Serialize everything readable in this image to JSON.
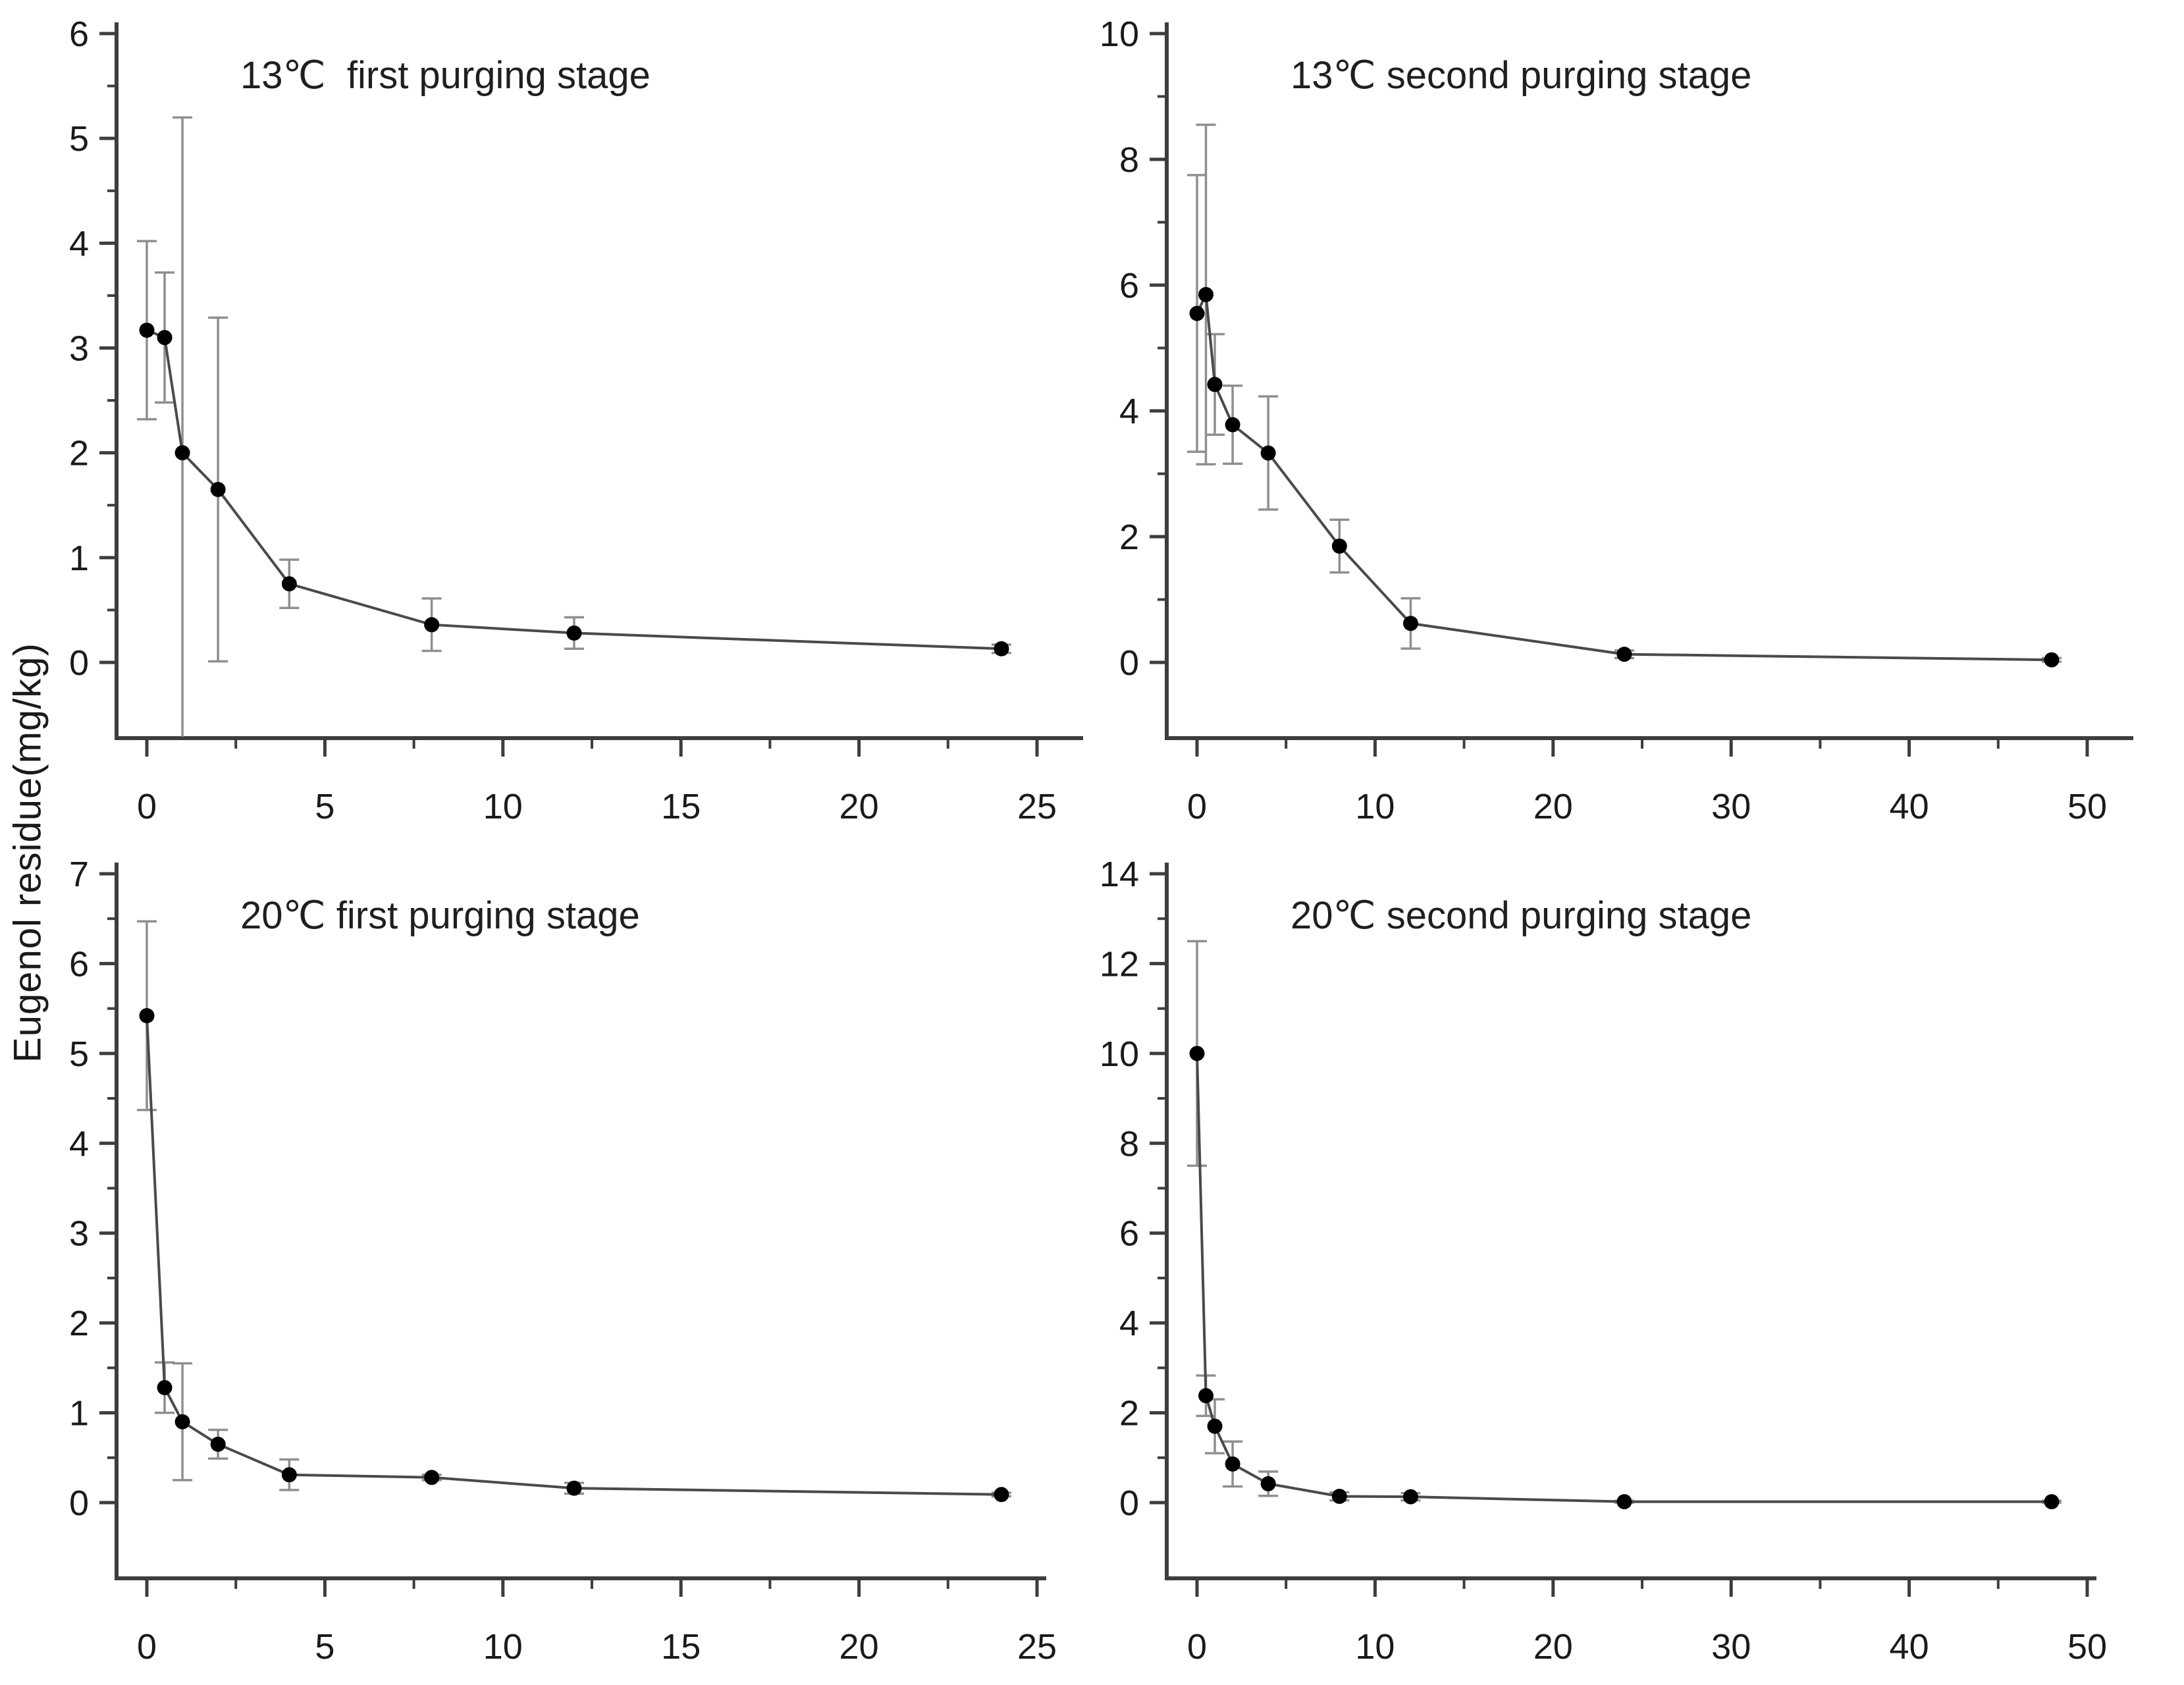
{
  "figure": {
    "ylabel": "Eugenol residue(mg/kg)",
    "background": "#ffffff",
    "style": {
      "axis_color": "#3d3d3d",
      "tick_label_color": "#1a1a1a",
      "title_color": "#1f1f1f",
      "series_line_color": "#4a4a4a",
      "error_bar_color": "#8f8f8f",
      "marker_color": "#000000"
    }
  },
  "chart_data": [
    {
      "type": "line",
      "title": "13℃  first purging stage",
      "position": "top-left",
      "xlabel": "",
      "ylabel": "Eugenol residue(mg/kg)",
      "x": [
        0,
        0.5,
        1,
        2,
        4,
        8,
        12,
        24
      ],
      "y": [
        3.17,
        3.1,
        2.0,
        1.65,
        0.75,
        0.36,
        0.28,
        0.13
      ],
      "yerr": [
        0.85,
        0.62,
        3.2,
        1.64,
        0.23,
        0.25,
        0.15,
        0.04
      ],
      "xlim": [
        0,
        25
      ],
      "ylim": [
        0,
        6
      ],
      "xticks": [
        0,
        5,
        10,
        15,
        20,
        25
      ],
      "yticks": [
        0,
        1,
        2,
        3,
        4,
        5,
        6
      ],
      "x_minor_step": 2.5,
      "y_minor_step": 0.5,
      "grid": false,
      "legend": "none"
    },
    {
      "type": "line",
      "title": "13℃ second purging stage",
      "position": "top-right",
      "xlabel": "",
      "ylabel": "Eugenol residue(mg/kg)",
      "x": [
        0,
        0.5,
        1,
        2,
        4,
        8,
        12,
        24,
        48
      ],
      "y": [
        5.55,
        5.85,
        4.42,
        3.78,
        3.33,
        1.85,
        0.62,
        0.13,
        0.04
      ],
      "yerr": [
        2.2,
        2.7,
        0.8,
        0.62,
        0.9,
        0.42,
        0.4,
        0.06,
        0.03
      ],
      "xlim": [
        0,
        50
      ],
      "ylim": [
        0,
        10
      ],
      "xticks": [
        0,
        10,
        20,
        30,
        40,
        50
      ],
      "yticks": [
        0,
        2,
        4,
        6,
        8,
        10
      ],
      "x_minor_step": 5,
      "y_minor_step": 1,
      "grid": false,
      "legend": "none"
    },
    {
      "type": "line",
      "title": "20℃ first purging stage",
      "position": "bottom-left",
      "xlabel": "",
      "ylabel": "Eugenol residue(mg/kg)",
      "x": [
        0,
        0.5,
        1,
        2,
        4,
        8,
        12,
        24
      ],
      "y": [
        5.42,
        1.28,
        0.9,
        0.65,
        0.31,
        0.28,
        0.16,
        0.09
      ],
      "yerr": [
        1.05,
        0.28,
        0.65,
        0.16,
        0.17,
        0.03,
        0.06,
        0.02
      ],
      "xlim": [
        0,
        25
      ],
      "ylim": [
        0,
        7
      ],
      "xticks": [
        0,
        5,
        10,
        15,
        20,
        25
      ],
      "yticks": [
        0,
        1,
        2,
        3,
        4,
        5,
        6,
        7
      ],
      "x_minor_step": 2.5,
      "y_minor_step": 0.5,
      "grid": false,
      "legend": "none"
    },
    {
      "type": "line",
      "title": "20℃ second purging stage",
      "position": "bottom-right",
      "xlabel": "",
      "ylabel": "Eugenol residue(mg/kg)",
      "x": [
        0,
        0.5,
        1,
        2,
        4,
        8,
        12,
        24,
        48
      ],
      "y": [
        10.0,
        2.38,
        1.7,
        0.86,
        0.42,
        0.14,
        0.13,
        0.02,
        0.02
      ],
      "yerr": [
        2.5,
        0.45,
        0.6,
        0.5,
        0.27,
        0.09,
        0.08,
        0.02,
        0.02
      ],
      "xlim": [
        0,
        50
      ],
      "ylim": [
        0,
        14
      ],
      "xticks": [
        0,
        10,
        20,
        30,
        40,
        50
      ],
      "yticks": [
        0,
        2,
        4,
        6,
        8,
        10,
        12,
        14
      ],
      "x_minor_step": 5,
      "y_minor_step": 1,
      "grid": false,
      "legend": "none"
    }
  ]
}
